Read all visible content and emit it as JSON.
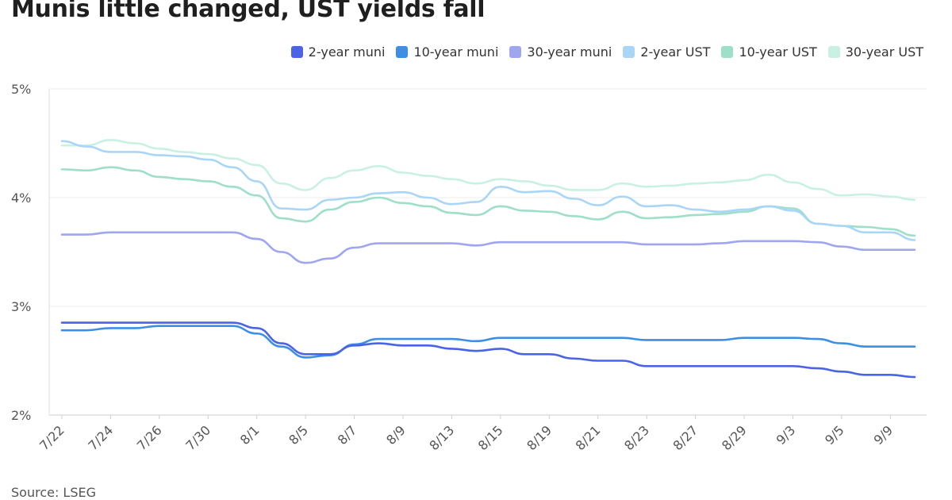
{
  "title": "Munis little changed, UST yields fall",
  "source": "Source: LSEG",
  "chart_data": {
    "type": "line",
    "x": [
      "7/22",
      "7/23",
      "7/24",
      "7/25",
      "7/26",
      "7/29",
      "7/30",
      "7/31",
      "8/1",
      "8/2",
      "8/5",
      "8/6",
      "8/7",
      "8/8",
      "8/9",
      "8/12",
      "8/13",
      "8/14",
      "8/15",
      "8/16",
      "8/19",
      "8/20",
      "8/21",
      "8/22",
      "8/23",
      "8/26",
      "8/27",
      "8/28",
      "8/29",
      "8/30",
      "9/3",
      "9/4",
      "9/5",
      "9/6",
      "9/9",
      "9/10"
    ],
    "x_tick_labels": [
      "7/22",
      "7/24",
      "7/26",
      "7/30",
      "8/1",
      "8/5",
      "8/7",
      "8/9",
      "8/13",
      "8/15",
      "8/19",
      "8/21",
      "8/23",
      "8/27",
      "8/29",
      "9/3",
      "9/5",
      "9/9"
    ],
    "y_tick_labels": [
      "2%",
      "3%",
      "4%",
      "5%"
    ],
    "ylim": [
      2,
      5
    ],
    "grid": true,
    "legend_position": "top-right",
    "series": [
      {
        "name": "2-year muni",
        "color": "#4a63e7",
        "values": [
          2.85,
          2.85,
          2.85,
          2.85,
          2.85,
          2.85,
          2.85,
          2.85,
          2.8,
          2.66,
          2.56,
          2.56,
          2.64,
          2.66,
          2.64,
          2.64,
          2.61,
          2.59,
          2.61,
          2.56,
          2.56,
          2.52,
          2.5,
          2.5,
          2.45,
          2.45,
          2.45,
          2.45,
          2.45,
          2.45,
          2.45,
          2.43,
          2.4,
          2.37,
          2.37,
          2.35
        ]
      },
      {
        "name": "10-year muni",
        "color": "#3d8fe6",
        "values": [
          2.78,
          2.78,
          2.8,
          2.8,
          2.82,
          2.82,
          2.82,
          2.82,
          2.75,
          2.63,
          2.53,
          2.55,
          2.65,
          2.7,
          2.7,
          2.7,
          2.7,
          2.68,
          2.71,
          2.71,
          2.71,
          2.71,
          2.71,
          2.71,
          2.69,
          2.69,
          2.69,
          2.69,
          2.71,
          2.71,
          2.71,
          2.7,
          2.66,
          2.63,
          2.63,
          2.63
        ]
      },
      {
        "name": "30-year muni",
        "color": "#9fa6ef",
        "values": [
          3.66,
          3.66,
          3.68,
          3.68,
          3.68,
          3.68,
          3.68,
          3.68,
          3.62,
          3.5,
          3.4,
          3.44,
          3.54,
          3.58,
          3.58,
          3.58,
          3.58,
          3.56,
          3.59,
          3.59,
          3.59,
          3.59,
          3.59,
          3.59,
          3.57,
          3.57,
          3.57,
          3.58,
          3.6,
          3.6,
          3.6,
          3.59,
          3.55,
          3.52,
          3.52,
          3.52
        ]
      },
      {
        "name": "2-year UST",
        "color": "#a9d6f7",
        "values": [
          4.52,
          4.47,
          4.42,
          4.42,
          4.39,
          4.38,
          4.35,
          4.28,
          4.15,
          3.9,
          3.89,
          3.98,
          4.0,
          4.04,
          4.05,
          4.0,
          3.94,
          3.96,
          4.1,
          4.05,
          4.06,
          3.99,
          3.93,
          4.01,
          3.92,
          3.93,
          3.89,
          3.87,
          3.89,
          3.92,
          3.88,
          3.76,
          3.74,
          3.68,
          3.68,
          3.61
        ]
      },
      {
        "name": "10-year UST",
        "color": "#9ddfc8",
        "values": [
          4.26,
          4.25,
          4.28,
          4.25,
          4.19,
          4.17,
          4.15,
          4.1,
          4.02,
          3.81,
          3.78,
          3.89,
          3.96,
          4.0,
          3.95,
          3.92,
          3.86,
          3.84,
          3.92,
          3.88,
          3.87,
          3.83,
          3.8,
          3.87,
          3.81,
          3.82,
          3.84,
          3.85,
          3.87,
          3.92,
          3.9,
          3.76,
          3.74,
          3.73,
          3.71,
          3.65
        ]
      },
      {
        "name": "30-year UST",
        "color": "#c8f1e4",
        "values": [
          4.48,
          4.48,
          4.53,
          4.5,
          4.45,
          4.42,
          4.4,
          4.36,
          4.3,
          4.13,
          4.07,
          4.18,
          4.25,
          4.29,
          4.23,
          4.2,
          4.17,
          4.13,
          4.17,
          4.15,
          4.11,
          4.07,
          4.07,
          4.13,
          4.1,
          4.11,
          4.13,
          4.14,
          4.16,
          4.21,
          4.14,
          4.08,
          4.02,
          4.03,
          4.01,
          3.98
        ]
      }
    ]
  }
}
